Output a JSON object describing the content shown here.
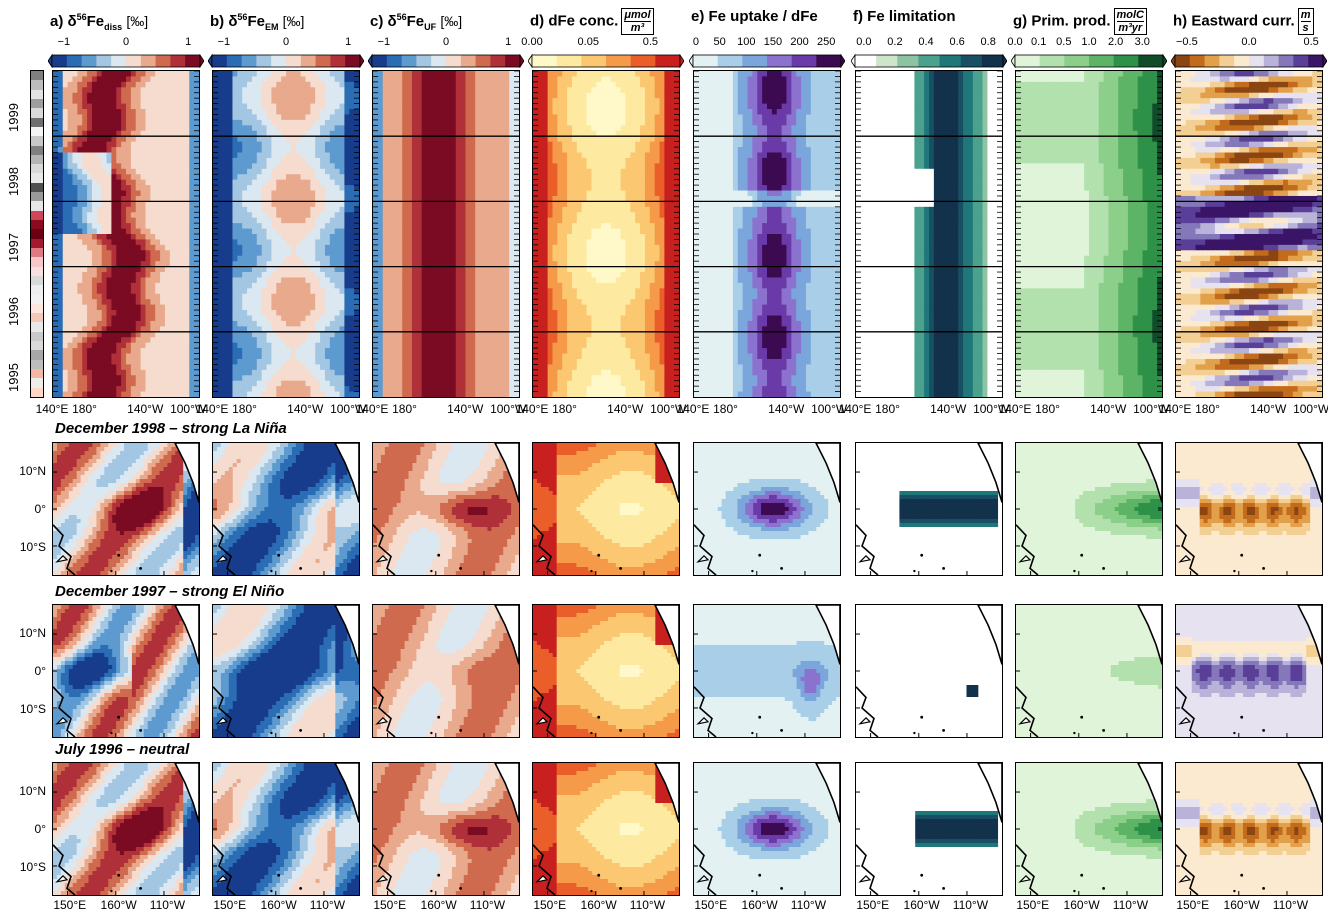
{
  "panels": [
    {
      "id": "a",
      "title_main": "a) δ",
      "title_sup": "56",
      "title_el": "Fe",
      "title_sub": "diss",
      "unit": "[‰]",
      "ticks": [
        "−1",
        "0",
        "1"
      ],
      "colors": [
        "#183c8c",
        "#2b6db5",
        "#5d9ad0",
        "#a3c7e3",
        "#dbe8f1",
        "#f5dccf",
        "#e8a98c",
        "#d06a4f",
        "#b0303a",
        "#7a0b22"
      ]
    },
    {
      "id": "b",
      "title_main": "b) δ",
      "title_sup": "56",
      "title_el": "Fe",
      "title_sub": "EM",
      "unit": "[‰]",
      "ticks": [
        "−1",
        "0",
        "1"
      ],
      "colors": [
        "#183c8c",
        "#2b6db5",
        "#5d9ad0",
        "#a3c7e3",
        "#dbe8f1",
        "#f5dccf",
        "#e8a98c",
        "#d06a4f",
        "#b0303a",
        "#7a0b22"
      ]
    },
    {
      "id": "c",
      "title_main": "c) δ",
      "title_sup": "56",
      "title_el": "Fe",
      "title_sub": "UF",
      "unit": "[‰]",
      "ticks": [
        "−1",
        "0",
        "1"
      ],
      "colors": [
        "#183c8c",
        "#2b6db5",
        "#5d9ad0",
        "#a3c7e3",
        "#dbe8f1",
        "#f5dccf",
        "#e8a98c",
        "#d06a4f",
        "#b0303a",
        "#7a0b22"
      ]
    },
    {
      "id": "d",
      "title_main": "d) dFe conc.",
      "unit_num": "μmol",
      "unit_den": "m³",
      "ticks": [
        "0.00",
        "0.05",
        "0.5"
      ],
      "colors": [
        "#fff8c8",
        "#fde9a0",
        "#fbc770",
        "#f59a48",
        "#ea5e2a",
        "#c8201e"
      ]
    },
    {
      "id": "e",
      "title_main": "e) Fe uptake / dFe",
      "ticks": [
        "0",
        "50",
        "100",
        "150",
        "200",
        "250"
      ],
      "colors": [
        "#e4f1f3",
        "#a9cfe8",
        "#7aa6dc",
        "#8c72cf",
        "#6a3aa8",
        "#3c0a50"
      ]
    },
    {
      "id": "f",
      "title_main": "f) Fe limitation",
      "ticks": [
        "0.0",
        "0.2",
        "0.4",
        "0.6",
        "0.8"
      ],
      "colors": [
        "#ffffff",
        "#cfe5c9",
        "#8cc3a3",
        "#4aa18d",
        "#1f7779",
        "#194f64",
        "#12314b"
      ]
    },
    {
      "id": "g",
      "title_main": "g) Prim. prod.",
      "unit_num": "molC",
      "unit_den": "m³yr",
      "ticks": [
        "0.0",
        "0.1",
        "0.5",
        "1.0",
        "2.0",
        "3.0"
      ],
      "colors": [
        "#dff4d9",
        "#b3e1ae",
        "#8bcf8a",
        "#5db466",
        "#2e9148",
        "#104c2a"
      ]
    },
    {
      "id": "h",
      "title_main": "h) Eastward curr.",
      "unit_num": "m",
      "unit_den": "s",
      "ticks": [
        "−0.5",
        "0.0",
        "0.5"
      ],
      "colors": [
        "#8a4512",
        "#c26b1c",
        "#e3a04a",
        "#f4cf93",
        "#fbead0",
        "#e6e2f0",
        "#b9b2d9",
        "#8478bb",
        "#5a3f98",
        "#3a1567"
      ]
    }
  ],
  "hovmoller_xticks": [
    "140°E",
    "180°",
    "140°W",
    "100°W"
  ],
  "years": [
    "1999",
    "1998",
    "1997",
    "1996",
    "1995"
  ],
  "map_xticks": [
    "150°E",
    "160°W",
    "110°W"
  ],
  "map_yticks": [
    "10°N",
    "0°",
    "10°S"
  ],
  "row_titles": [
    "December 1998 – strong La Niña",
    "December 1997 – strong El Niño",
    "July 1996 – neutral"
  ]
}
